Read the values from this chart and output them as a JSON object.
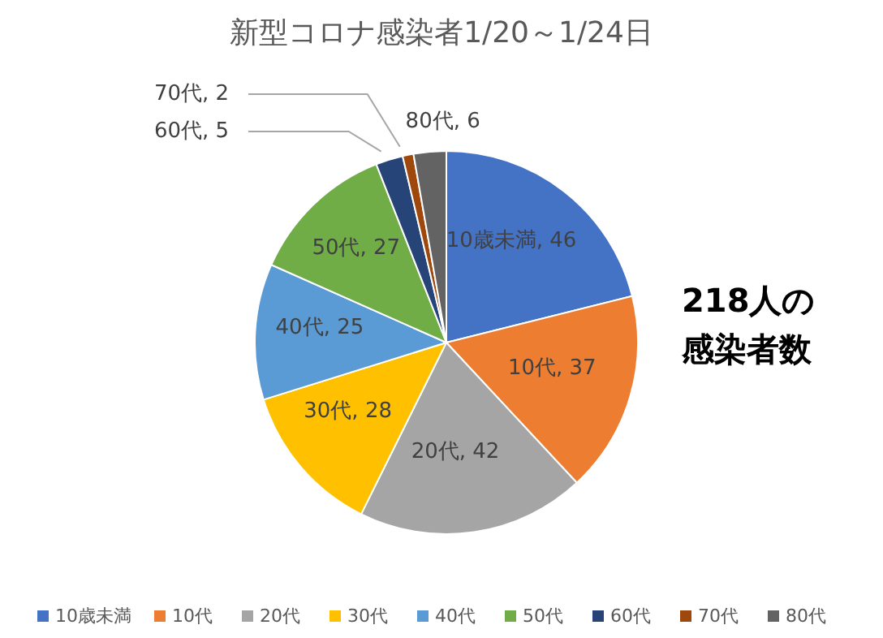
{
  "chart_data": {
    "type": "pie",
    "title": "新型コロナ感染者1/20～1/24日",
    "categories": [
      "10歳未満",
      "10代",
      "20代",
      "30代",
      "40代",
      "50代",
      "60代",
      "70代",
      "80代"
    ],
    "values": [
      46,
      37,
      42,
      28,
      25,
      27,
      5,
      2,
      6
    ],
    "colors": [
      "#4472c4",
      "#ed7d31",
      "#a5a5a5",
      "#ffc000",
      "#5b9bd5",
      "#70ad47",
      "#264478",
      "#9e480e",
      "#636363"
    ],
    "value_labels": [
      "10歳未満, 46",
      "10代, 37",
      "20代, 42",
      "30代, 28",
      "40代, 25",
      "50代, 27",
      "60代, 5",
      "70代, 2",
      "80代, 6"
    ],
    "legend": "bottom",
    "annotations": [
      "218人の",
      "感染者数"
    ]
  }
}
